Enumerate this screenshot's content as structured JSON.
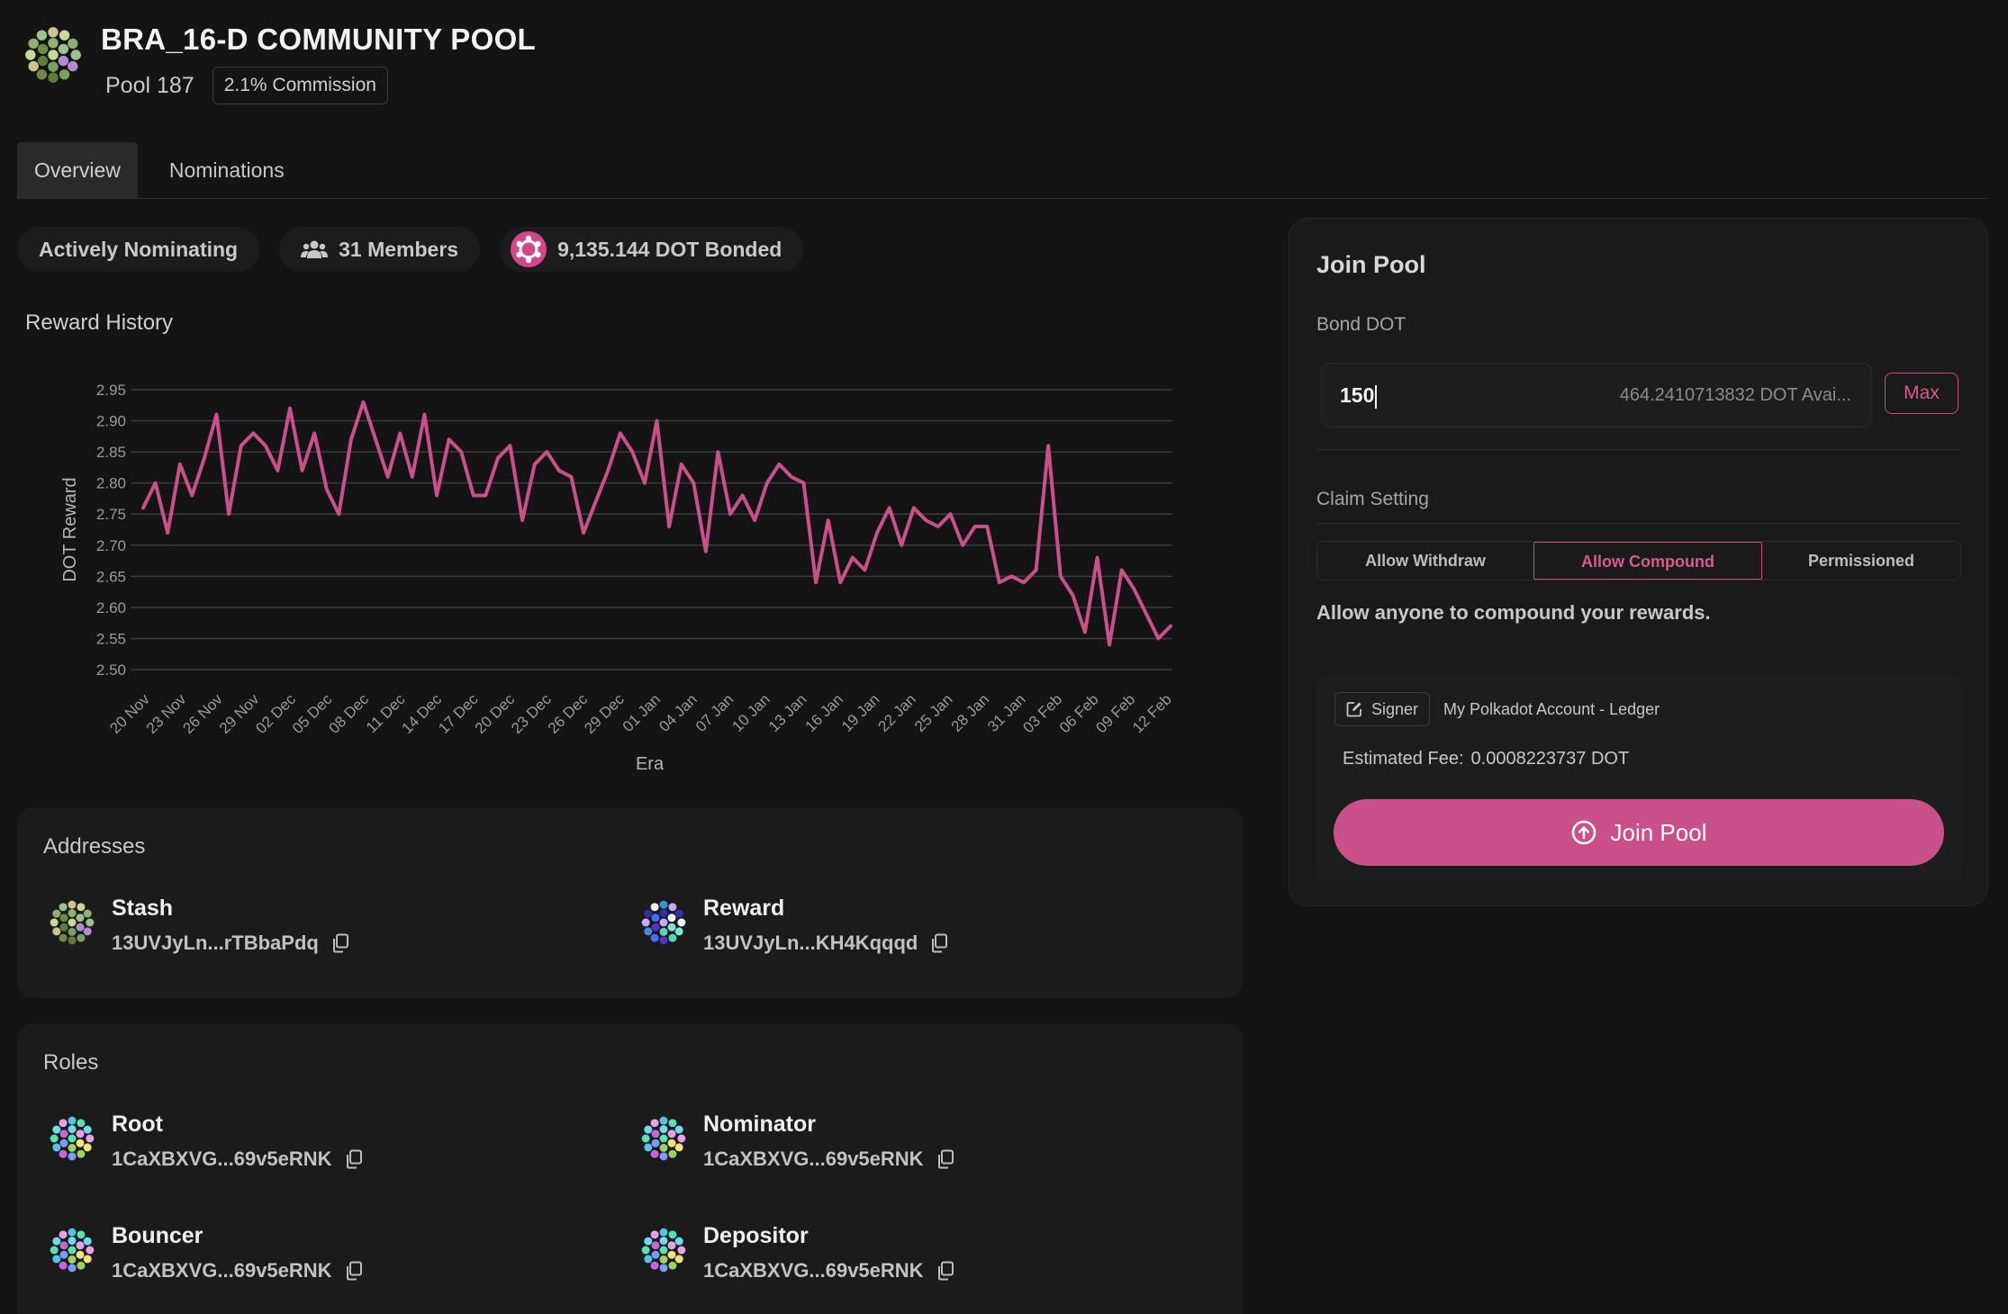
{
  "pool": {
    "name": "BRA_16-D COMMUNITY POOL",
    "id_label": "Pool 187",
    "commission": "2.1% Commission"
  },
  "tabs": [
    {
      "label": "Overview",
      "active": true
    },
    {
      "label": "Nominations",
      "active": false
    }
  ],
  "stats": {
    "state": "Actively Nominating",
    "members": "31 Members",
    "bonded": "9,135.144 DOT Bonded"
  },
  "reward_history": {
    "title": "Reward History"
  },
  "chart_data": {
    "type": "line",
    "title": "",
    "xlabel": "Era",
    "ylabel": "DOT Reward",
    "ylim": [
      2.5,
      2.95
    ],
    "yticks": [
      "2.95",
      "2.90",
      "2.85",
      "2.80",
      "2.75",
      "2.70",
      "2.65",
      "2.60",
      "2.55",
      "2.50"
    ],
    "xticks": [
      "20 Nov",
      "23 Nov",
      "26 Nov",
      "29 Nov",
      "02 Dec",
      "05 Dec",
      "08 Dec",
      "11 Dec",
      "14 Dec",
      "17 Dec",
      "20 Dec",
      "23 Dec",
      "26 Dec",
      "29 Dec",
      "01 Jan",
      "04 Jan",
      "07 Jan",
      "10 Jan",
      "13 Jan",
      "16 Jan",
      "19 Jan",
      "22 Jan",
      "25 Jan",
      "28 Jan",
      "31 Jan",
      "03 Feb",
      "06 Feb",
      "09 Feb",
      "12 Feb"
    ],
    "grid": true,
    "legend": "none",
    "color": "#c9508a",
    "series": [
      {
        "values": [
          2.76,
          2.8,
          2.72,
          2.83,
          2.78,
          2.84,
          2.91,
          2.75,
          2.86,
          2.88,
          2.86,
          2.82,
          2.92,
          2.82,
          2.88,
          2.79,
          2.75,
          2.87,
          2.93,
          2.87,
          2.81,
          2.88,
          2.81,
          2.91,
          2.78,
          2.87,
          2.85,
          2.78,
          2.78,
          2.84,
          2.86,
          2.74,
          2.83,
          2.85,
          2.82,
          2.81,
          2.72,
          2.77,
          2.82,
          2.88,
          2.85,
          2.8,
          2.9,
          2.73,
          2.83,
          2.8,
          2.69,
          2.85,
          2.75,
          2.78,
          2.74,
          2.8,
          2.83,
          2.81,
          2.8,
          2.64,
          2.74,
          2.64,
          2.68,
          2.66,
          2.72,
          2.76,
          2.7,
          2.76,
          2.74,
          2.73,
          2.75,
          2.7,
          2.73,
          2.73,
          2.64,
          2.65,
          2.64,
          2.66,
          2.86,
          2.65,
          2.62,
          2.56,
          2.68,
          2.54,
          2.66,
          2.63,
          2.59,
          2.55,
          2.57
        ]
      }
    ]
  },
  "addresses": {
    "title": "Addresses",
    "items": [
      {
        "label": "Stash",
        "value": "13UVJyLn...rTBbaPdq"
      },
      {
        "label": "Reward",
        "value": "13UVJyLn...KH4Kqqqd"
      }
    ]
  },
  "roles": {
    "title": "Roles",
    "items": [
      {
        "label": "Root",
        "value": "1CaXBXVG...69v5eRNK"
      },
      {
        "label": "Nominator",
        "value": "1CaXBXVG...69v5eRNK"
      },
      {
        "label": "Bouncer",
        "value": "1CaXBXVG...69v5eRNK"
      },
      {
        "label": "Depositor",
        "value": "1CaXBXVG...69v5eRNK"
      }
    ]
  },
  "join": {
    "title": "Join Pool",
    "bond_label": "Bond DOT",
    "bond_value": "150",
    "available": "464.2410713832 DOT Avai...",
    "max_label": "Max",
    "claim_label": "Claim Setting",
    "claim_options": [
      "Allow Withdraw",
      "Allow Compound",
      "Permissioned"
    ],
    "claim_selected": "Allow Compound",
    "claim_description": "Allow anyone to compound your rewards.",
    "signer_label": "Signer",
    "signer_account": "My Polkadot Account - Ledger",
    "fee_label": "Estimated Fee:",
    "fee_value": "0.0008223737 DOT",
    "button_label": "Join Pool"
  },
  "colors": {
    "accent": "#c9508a",
    "background": "#141414",
    "card": "#1b1b1b"
  }
}
